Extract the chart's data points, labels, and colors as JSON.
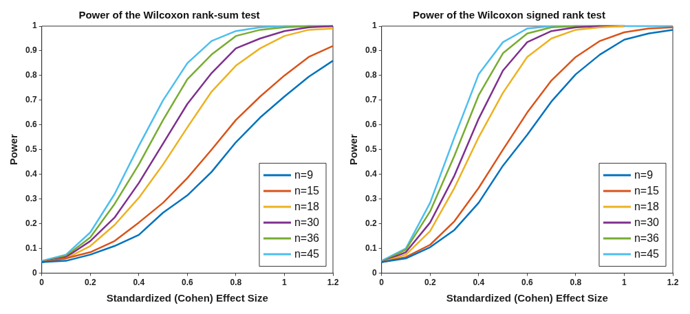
{
  "chart_data": [
    {
      "type": "line",
      "title": "Power of the Wilcoxon rank-sum test",
      "xlabel": "Standardized (Cohen) Effect Size",
      "ylabel": "Power",
      "x": [
        0,
        0.1,
        0.2,
        0.3,
        0.4,
        0.5,
        0.6,
        0.7,
        0.8,
        0.9,
        1.0,
        1.1,
        1.2
      ],
      "xlim": [
        0,
        1.2
      ],
      "xticks": [
        0,
        0.2,
        0.4,
        0.6,
        0.8,
        1,
        1.2
      ],
      "ylim": [
        0,
        1
      ],
      "yticks": [
        0,
        0.1,
        0.2,
        0.3,
        0.4,
        0.5,
        0.6,
        0.7,
        0.8,
        0.9,
        1
      ],
      "legend": "bottom right",
      "series": [
        {
          "name": "n=9",
          "color": "#0072bd",
          "values": [
            0.045,
            0.05,
            0.075,
            0.11,
            0.155,
            0.245,
            0.315,
            0.41,
            0.53,
            0.63,
            0.715,
            0.795,
            0.86
          ]
        },
        {
          "name": "n=15",
          "color": "#d95319",
          "values": [
            0.045,
            0.06,
            0.085,
            0.13,
            0.205,
            0.285,
            0.385,
            0.5,
            0.62,
            0.715,
            0.8,
            0.875,
            0.92
          ]
        },
        {
          "name": "n=18",
          "color": "#edb120",
          "values": [
            0.045,
            0.06,
            0.11,
            0.195,
            0.305,
            0.44,
            0.59,
            0.735,
            0.84,
            0.91,
            0.96,
            0.985,
            0.99
          ]
        },
        {
          "name": "n=30",
          "color": "#7e2f8e",
          "values": [
            0.045,
            0.065,
            0.13,
            0.225,
            0.365,
            0.525,
            0.685,
            0.81,
            0.91,
            0.95,
            0.98,
            0.995,
            1.0
          ]
        },
        {
          "name": "n=36",
          "color": "#77ac30",
          "values": [
            0.045,
            0.07,
            0.145,
            0.28,
            0.44,
            0.62,
            0.785,
            0.885,
            0.96,
            0.985,
            0.995,
            1.0,
            1.0
          ]
        },
        {
          "name": "n=45",
          "color": "#4dbeee",
          "values": [
            0.05,
            0.075,
            0.165,
            0.32,
            0.515,
            0.7,
            0.85,
            0.94,
            0.98,
            0.995,
            1.0,
            1.0,
            1.0
          ]
        }
      ]
    },
    {
      "type": "line",
      "title": "Power of the Wilcoxon signed rank test",
      "xlabel": "Standardized (Cohen) Effect Size",
      "ylabel": "Power",
      "x": [
        0,
        0.1,
        0.2,
        0.3,
        0.4,
        0.5,
        0.6,
        0.7,
        0.8,
        0.9,
        1.0,
        1.1,
        1.2
      ],
      "xlim": [
        0,
        1.2
      ],
      "xticks": [
        0,
        0.2,
        0.4,
        0.6,
        0.8,
        1,
        1.2
      ],
      "ylim": [
        0,
        1
      ],
      "yticks": [
        0,
        0.1,
        0.2,
        0.3,
        0.4,
        0.5,
        0.6,
        0.7,
        0.8,
        0.9,
        1
      ],
      "legend": "bottom right",
      "series": [
        {
          "name": "n=9",
          "color": "#0072bd",
          "values": [
            0.045,
            0.06,
            0.105,
            0.175,
            0.285,
            0.435,
            0.56,
            0.695,
            0.805,
            0.885,
            0.945,
            0.97,
            0.985
          ]
        },
        {
          "name": "n=15",
          "color": "#d95319",
          "values": [
            0.045,
            0.065,
            0.115,
            0.21,
            0.345,
            0.5,
            0.65,
            0.78,
            0.875,
            0.94,
            0.975,
            0.99,
            0.995
          ]
        },
        {
          "name": "n=18",
          "color": "#edb120",
          "values": [
            0.045,
            0.075,
            0.17,
            0.345,
            0.55,
            0.73,
            0.875,
            0.95,
            0.985,
            0.995,
            1,
            null,
            null
          ]
        },
        {
          "name": "n=30",
          "color": "#7e2f8e",
          "values": [
            0.045,
            0.085,
            0.205,
            0.395,
            0.625,
            0.82,
            0.935,
            0.98,
            0.995,
            1,
            1,
            null,
            null
          ]
        },
        {
          "name": "n=36",
          "color": "#77ac30",
          "values": [
            0.045,
            0.095,
            0.25,
            0.475,
            0.72,
            0.89,
            0.97,
            0.995,
            1,
            1,
            null,
            null,
            null
          ]
        },
        {
          "name": "n=45",
          "color": "#4dbeee",
          "values": [
            0.05,
            0.1,
            0.285,
            0.55,
            0.805,
            0.935,
            0.99,
            1,
            1,
            1,
            1,
            1,
            1
          ]
        }
      ]
    }
  ]
}
